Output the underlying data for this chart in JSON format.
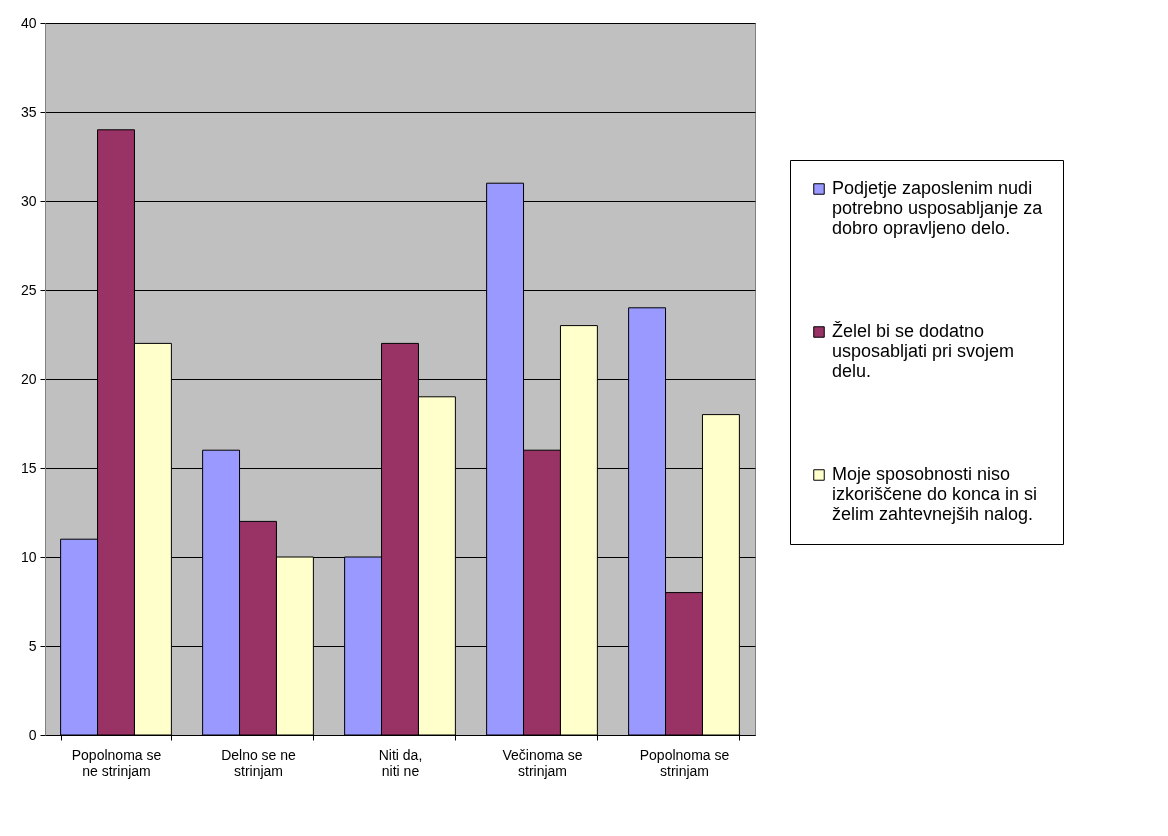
{
  "chart_data": {
    "type": "bar",
    "categories": [
      "Popolnoma se ne strinjam",
      "Delno se ne strinjam",
      "Niti da, niti ne",
      "Večinoma se strinjam",
      "Popolnoma se strinjam"
    ],
    "series": [
      {
        "name": "Podjetje zaposlenim nudi potrebno usposabljanje za dobro opravljeno delo.",
        "color": "#9999ff",
        "values": [
          11,
          16,
          10,
          31,
          24
        ]
      },
      {
        "name": "Želel bi se dodatno usposabljati pri svojem delu.",
        "color": "#993366",
        "values": [
          34,
          12,
          22,
          16,
          8
        ]
      },
      {
        "name": "Moje sposobnosti niso izkoriščene do konca in si želim zahtevnejših nalog.",
        "color": "#ffffcc",
        "values": [
          22,
          10,
          19,
          23,
          18
        ]
      }
    ],
    "ylim": [
      0,
      40
    ],
    "yticks": [
      0,
      5,
      10,
      15,
      20,
      25,
      30,
      35,
      40
    ],
    "grid": "y",
    "legend": "right"
  }
}
